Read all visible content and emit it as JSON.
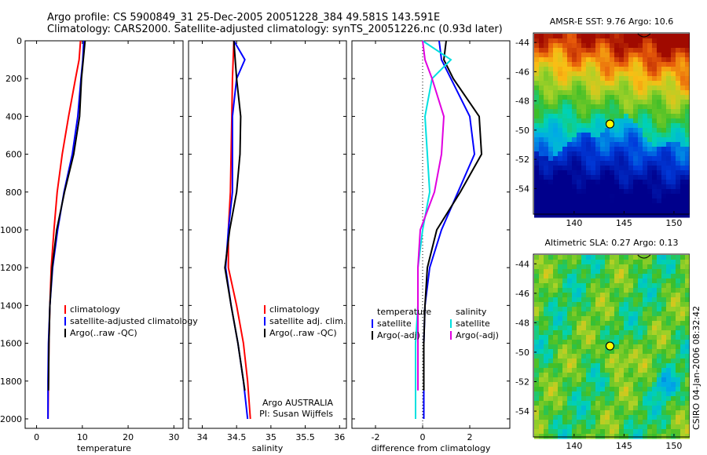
{
  "title_line1": "Argo profile: CS 5900849_31 25-Dec-2005 20051228_384 49.581S 143.591E",
  "title_line2": "Climatology: CARS2000. Satellite-adjusted climatology: synTS_20051226.nc (0.93d later)",
  "credit": "CSIRO 04-Jan-2006 08:32:42",
  "colors": {
    "climatology": "#ff0000",
    "satellite": "#0000ff",
    "argo": "#000000",
    "sat_sal": "#00e0e0",
    "argo_sal": "#e000e0"
  },
  "chart_data": [
    {
      "type": "line",
      "xlabel": "temperature",
      "ylim": [
        2050,
        0
      ],
      "xlim": [
        -2.5,
        32
      ],
      "xticks": [
        "0",
        "10",
        "20",
        "30"
      ],
      "yticks": [
        "0",
        "200",
        "400",
        "600",
        "800",
        "1000",
        "1200",
        "1400",
        "1600",
        "1800",
        "2000"
      ],
      "legend": [
        "climatology",
        "satellite-adjusted climatology",
        "Argo(..raw -QC)"
      ],
      "series": [
        {
          "name": "climatology",
          "x": [
            9.6,
            9.3,
            8.5,
            7.0,
            5.6,
            4.5,
            3.8,
            3.2,
            2.9,
            2.7,
            2.6,
            2.5
          ],
          "y": [
            0,
            100,
            200,
            400,
            600,
            800,
            1000,
            1200,
            1400,
            1600,
            1800,
            2000
          ]
        },
        {
          "name": "satellite-adjusted climatology",
          "x": [
            10.3,
            10.1,
            9.7,
            9.0,
            7.8,
            6.0,
            4.6,
            3.5,
            2.9,
            2.6,
            2.5,
            2.5
          ],
          "y": [
            0,
            100,
            200,
            400,
            600,
            800,
            1000,
            1200,
            1400,
            1600,
            1800,
            2000
          ]
        },
        {
          "name": "Argo(..raw -QC)",
          "x": [
            10.6,
            10.2,
            9.8,
            9.4,
            8.1,
            6.1,
            4.4,
            3.4,
            2.9,
            2.7,
            2.6
          ],
          "y": [
            0,
            100,
            200,
            400,
            600,
            800,
            1000,
            1200,
            1400,
            1600,
            1850
          ]
        }
      ]
    },
    {
      "type": "line",
      "xlabel": "salinity",
      "ylim": [
        2050,
        0
      ],
      "xlim": [
        33.8,
        36.1
      ],
      "xticks": [
        "34",
        "34.5",
        "35",
        "35.5",
        "36"
      ],
      "legend": [
        "climatology",
        "satellite adj. clim.",
        "Argo(..raw -QC)"
      ],
      "annotation": [
        "Argo AUSTRALIA",
        "PI: Susan Wijffels"
      ],
      "series": [
        {
          "name": "climatology",
          "x": [
            34.46,
            34.45,
            34.44,
            34.43,
            34.42,
            34.41,
            34.38,
            34.38,
            34.5,
            34.6,
            34.66,
            34.7
          ],
          "y": [
            0,
            100,
            200,
            400,
            600,
            800,
            1000,
            1200,
            1400,
            1600,
            1800,
            2000
          ]
        },
        {
          "name": "satellite adj. clim.",
          "x": [
            34.46,
            34.62,
            34.5,
            34.44,
            34.44,
            34.44,
            34.38,
            34.34,
            34.42,
            34.52,
            34.6,
            34.66
          ],
          "y": [
            0,
            100,
            200,
            400,
            600,
            800,
            1000,
            1200,
            1400,
            1600,
            1800,
            2000
          ]
        },
        {
          "name": "Argo(..raw -QC)",
          "x": [
            34.46,
            34.48,
            34.5,
            34.56,
            34.55,
            34.5,
            34.4,
            34.33,
            34.42,
            34.52,
            34.62
          ],
          "y": [
            0,
            100,
            200,
            400,
            600,
            800,
            1000,
            1200,
            1400,
            1600,
            1850
          ]
        }
      ]
    },
    {
      "type": "line",
      "xlabel": "difference from climatology",
      "ylim": [
        2050,
        0
      ],
      "xlim": [
        -3,
        3.7
      ],
      "xticks": [
        "-2",
        "0",
        "2"
      ],
      "legend_left_title": "temperature",
      "legend_right_title": "salinity",
      "legend": [
        "satellite",
        "Argo(-adj)",
        "satellite",
        "Argo(-adj)"
      ],
      "series": [
        {
          "name": "satellite",
          "x": [
            0.7,
            0.8,
            1.2,
            2.0,
            2.2,
            1.5,
            0.8,
            0.3,
            0.1,
            0.05,
            0.05,
            0.05
          ],
          "y": [
            0,
            100,
            200,
            400,
            600,
            800,
            1000,
            1200,
            1400,
            1600,
            1800,
            2000
          ]
        },
        {
          "name": "Argo(-adj)",
          "x": [
            1.0,
            0.9,
            1.3,
            2.4,
            2.5,
            1.6,
            0.6,
            0.2,
            0.1,
            0.05,
            0.05
          ],
          "y": [
            0,
            100,
            200,
            400,
            600,
            800,
            1000,
            1200,
            1400,
            1600,
            1850
          ]
        },
        {
          "name": "satellite",
          "x": [
            0.0,
            1.2,
            0.4,
            0.1,
            0.2,
            0.3,
            0.0,
            -0.2,
            -0.2,
            -0.3,
            -0.3,
            -0.3
          ],
          "y": [
            0,
            100,
            200,
            400,
            600,
            800,
            1000,
            1200,
            1400,
            1600,
            1800,
            2000
          ]
        },
        {
          "name": "Argo(-adj)",
          "x": [
            0.0,
            0.1,
            0.4,
            0.9,
            0.8,
            0.5,
            -0.1,
            -0.2,
            -0.2,
            -0.2,
            -0.2
          ],
          "y": [
            0,
            100,
            200,
            400,
            600,
            800,
            1000,
            1200,
            1400,
            1600,
            1850
          ]
        }
      ]
    },
    {
      "type": "heatmap",
      "title": "AMSR-E SST: 9.76 Argo: 10.6",
      "xticks": [
        "140",
        "145",
        "150"
      ],
      "yticks": [
        "-44",
        "-46",
        "-48",
        "-50",
        "-52",
        "-54"
      ],
      "xlim": [
        136,
        151.5
      ],
      "ylim": [
        -55.7,
        -43.4
      ],
      "marker": {
        "lon": 143.591,
        "lat": -49.581
      }
    },
    {
      "type": "heatmap",
      "title": "Altimetric SLA: 0.27 Argo: 0.13",
      "xticks": [
        "140",
        "145",
        "150"
      ],
      "yticks": [
        "-44",
        "-46",
        "-48",
        "-50",
        "-52",
        "-54"
      ],
      "xlim": [
        136,
        151.5
      ],
      "ylim": [
        -55.7,
        -43.4
      ],
      "marker": {
        "lon": 143.591,
        "lat": -49.581
      }
    }
  ]
}
